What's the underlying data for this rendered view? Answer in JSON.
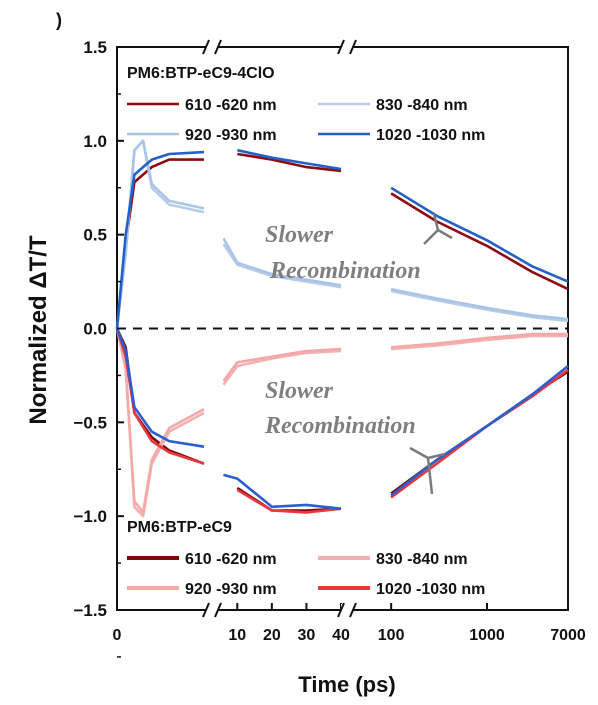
{
  "panel_label": ")",
  "chart_data": {
    "type": "line",
    "xlabel": "Time (ps)",
    "ylabel": "Normalized ΔT/T",
    "ylim": [
      -1.5,
      1.5
    ],
    "y_ticks": [
      "1.5",
      "1.0",
      "0.5",
      "0.0",
      "−0.5",
      "−1.0",
      "−1.5"
    ],
    "x_axis_type": "broken (linear 0–5, linear 5–40, log 40–7000)",
    "x_ticks": [
      "0",
      "10",
      "20",
      "30",
      "40",
      "100",
      "1000",
      "7000"
    ],
    "zero_line": "dashed",
    "annotations": [
      "Slower",
      "Recombination",
      "Slower",
      "Recombination"
    ],
    "groups": [
      {
        "title": "PM6:BTP-eC9-4ClO",
        "sign": "positive",
        "series": [
          {
            "name": "610 -620 nm",
            "color": "#8b0d13",
            "x": [
              0,
              0.5,
              1,
              2,
              3,
              5,
              10,
              20,
              30,
              40,
              100,
              300,
              1000,
              3000,
              7000
            ],
            "y": [
              0.0,
              0.45,
              0.78,
              0.86,
              0.9,
              0.9,
              0.93,
              0.9,
              0.86,
              0.84,
              0.72,
              0.57,
              0.44,
              0.3,
              0.21
            ]
          },
          {
            "name": "830 -840 nm",
            "color": "#b8cbe6",
            "x": [
              0,
              0.5,
              1,
              1.5,
              2,
              3,
              5,
              6,
              10,
              20,
              30,
              40,
              100,
              300,
              1000,
              3000,
              7000
            ],
            "y": [
              0.0,
              0.4,
              0.95,
              1.0,
              0.75,
              0.66,
              0.62,
              0.45,
              0.34,
              0.28,
              0.25,
              0.22,
              0.2,
              0.15,
              0.1,
              0.06,
              0.04
            ]
          },
          {
            "name": "920 -930 nm",
            "color": "#a9c4e6",
            "x": [
              0,
              0.5,
              1,
              1.5,
              2,
              3,
              5,
              6,
              10,
              20,
              30,
              40,
              100,
              300,
              1000,
              3000,
              7000
            ],
            "y": [
              0.0,
              0.4,
              0.95,
              1.0,
              0.77,
              0.68,
              0.64,
              0.48,
              0.35,
              0.29,
              0.26,
              0.23,
              0.21,
              0.16,
              0.11,
              0.07,
              0.05
            ]
          },
          {
            "name": "1020 -1030 nm",
            "color": "#2460c8",
            "x": [
              0,
              0.5,
              1,
              2,
              3,
              5,
              10,
              20,
              30,
              40,
              100,
              300,
              1000,
              3000,
              7000
            ],
            "y": [
              0.0,
              0.5,
              0.82,
              0.9,
              0.93,
              0.94,
              0.95,
              0.91,
              0.88,
              0.85,
              0.75,
              0.6,
              0.47,
              0.33,
              0.25
            ]
          }
        ]
      },
      {
        "title": "PM6:BTP-eC9",
        "sign": "negative",
        "series": [
          {
            "name": "610 -620 nm",
            "color": "#7a0a0f",
            "x": [
              0,
              0.5,
              1,
              2,
              3,
              5,
              10,
              20,
              30,
              40,
              100,
              300,
              1000,
              3000,
              7000
            ],
            "y": [
              0.0,
              -0.1,
              -0.45,
              -0.58,
              -0.65,
              -0.72,
              -0.85,
              -0.97,
              -0.97,
              -0.96,
              -0.88,
              -0.7,
              -0.52,
              -0.35,
              -0.23
            ]
          },
          {
            "name": "830 -840 nm",
            "color": "#f2b0b0",
            "x": [
              0,
              0.5,
              1,
              1.5,
              2,
              3,
              5,
              6,
              10,
              20,
              30,
              40,
              100,
              300,
              1000,
              3000,
              7000
            ],
            "y": [
              0.0,
              -0.2,
              -0.95,
              -1.0,
              -0.72,
              -0.55,
              -0.45,
              -0.3,
              -0.2,
              -0.16,
              -0.13,
              -0.12,
              -0.11,
              -0.09,
              -0.06,
              -0.04,
              -0.04
            ]
          },
          {
            "name": "920 -930 nm",
            "color": "#f5a8a8",
            "x": [
              0,
              0.5,
              1,
              1.5,
              2,
              3,
              5,
              6,
              10,
              20,
              30,
              40,
              100,
              300,
              1000,
              3000,
              7000
            ],
            "y": [
              0.0,
              -0.22,
              -0.92,
              -0.98,
              -0.7,
              -0.53,
              -0.43,
              -0.28,
              -0.18,
              -0.15,
              -0.12,
              -0.11,
              -0.1,
              -0.08,
              -0.05,
              -0.03,
              -0.03
            ]
          },
          {
            "name": "1020 -1030 nm",
            "color": "#e8383d",
            "x": [
              0,
              0.5,
              1,
              2,
              3,
              5,
              10,
              20,
              30,
              40,
              100,
              300,
              1000,
              3000,
              7000
            ],
            "y": [
              0.0,
              -0.15,
              -0.45,
              -0.6,
              -0.66,
              -0.72,
              -0.86,
              -0.97,
              -0.98,
              -0.96,
              -0.9,
              -0.72,
              -0.52,
              -0.36,
              -0.22
            ]
          }
        ]
      }
    ],
    "extra_traces": [
      {
        "name": "",
        "color": "#2a5fd0",
        "x": [
          0,
          0.5,
          1,
          2,
          3,
          5,
          6,
          10,
          20,
          30,
          40,
          100,
          300,
          1000,
          3000,
          7000
        ],
        "y": [
          0.0,
          -0.12,
          -0.42,
          -0.55,
          -0.6,
          -0.63,
          -0.78,
          -0.8,
          -0.95,
          -0.94,
          -0.96,
          -0.89,
          -0.7,
          -0.52,
          -0.35,
          -0.2
        ]
      }
    ]
  }
}
